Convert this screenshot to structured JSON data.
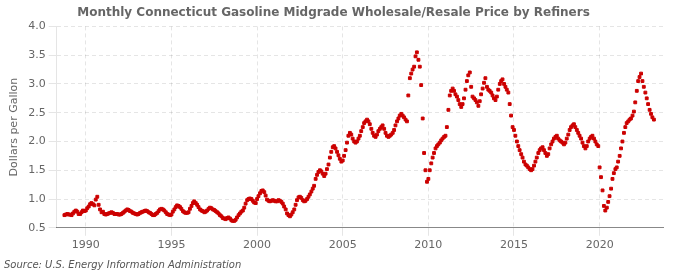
{
  "chart_data": {
    "type": "scatter",
    "title": "Monthly Connecticut Gasoline Midgrade Wholesale/Resale Price by Refiners",
    "y_label": "Dollars per Gallon",
    "source": "Source: U.S. Energy Information Administration",
    "color": "#cc0000",
    "marker": "square",
    "grid": true,
    "xlim": [
      1988.3,
      2023.7
    ],
    "xticks": [
      1990,
      1995,
      2000,
      2005,
      2010,
      2015,
      2020
    ],
    "ylim": [
      0.5,
      4.0
    ],
    "yticks": [
      0.5,
      {
        "value": 1,
        "label": "1.0"
      },
      1.5,
      {
        "value": 2,
        "label": "2.0"
      },
      2.5,
      {
        "value": 3,
        "label": "3.0"
      },
      3.5,
      {
        "value": 4,
        "label": "4.0"
      }
    ],
    "x": [
      1988.75,
      1988.83,
      1988.92,
      1989.0,
      1989.08,
      1989.17,
      1989.25,
      1989.33,
      1989.42,
      1989.5,
      1989.58,
      1989.67,
      1989.75,
      1989.83,
      1989.92,
      1990.0,
      1990.08,
      1990.17,
      1990.25,
      1990.33,
      1990.42,
      1990.5,
      1990.58,
      1990.67,
      1990.75,
      1990.83,
      1990.92,
      1991.0,
      1991.08,
      1991.17,
      1991.25,
      1991.33,
      1991.42,
      1991.5,
      1991.58,
      1991.67,
      1991.75,
      1991.83,
      1991.92,
      1992.0,
      1992.08,
      1992.17,
      1992.25,
      1992.33,
      1992.42,
      1992.5,
      1992.58,
      1992.67,
      1992.75,
      1992.83,
      1992.92,
      1993.0,
      1993.08,
      1993.17,
      1993.25,
      1993.33,
      1993.42,
      1993.5,
      1993.58,
      1993.67,
      1993.75,
      1993.83,
      1993.92,
      1994.0,
      1994.08,
      1994.17,
      1994.25,
      1994.33,
      1994.42,
      1994.5,
      1994.58,
      1994.67,
      1994.75,
      1994.83,
      1994.92,
      1995.0,
      1995.08,
      1995.17,
      1995.25,
      1995.33,
      1995.42,
      1995.5,
      1995.58,
      1995.67,
      1995.75,
      1995.83,
      1995.92,
      1996.0,
      1996.08,
      1996.17,
      1996.25,
      1996.33,
      1996.42,
      1996.5,
      1996.58,
      1996.67,
      1996.75,
      1996.83,
      1996.92,
      1997.0,
      1997.08,
      1997.17,
      1997.25,
      1997.33,
      1997.42,
      1997.5,
      1997.58,
      1997.67,
      1997.75,
      1997.83,
      1997.92,
      1998.0,
      1998.08,
      1998.17,
      1998.25,
      1998.33,
      1998.42,
      1998.5,
      1998.58,
      1998.67,
      1998.75,
      1998.83,
      1998.92,
      1999.0,
      1999.08,
      1999.17,
      1999.25,
      1999.33,
      1999.42,
      1999.5,
      1999.58,
      1999.67,
      1999.75,
      1999.83,
      1999.92,
      2000.0,
      2000.08,
      2000.17,
      2000.25,
      2000.33,
      2000.42,
      2000.5,
      2000.58,
      2000.67,
      2000.75,
      2000.83,
      2000.92,
      2001.0,
      2001.08,
      2001.17,
      2001.25,
      2001.33,
      2001.42,
      2001.5,
      2001.58,
      2001.67,
      2001.75,
      2001.83,
      2001.92,
      2002.0,
      2002.08,
      2002.17,
      2002.25,
      2002.33,
      2002.42,
      2002.5,
      2002.58,
      2002.67,
      2002.75,
      2002.83,
      2002.92,
      2003.0,
      2003.08,
      2003.17,
      2003.25,
      2003.33,
      2003.42,
      2003.5,
      2003.58,
      2003.67,
      2003.75,
      2003.83,
      2003.92,
      2004.0,
      2004.08,
      2004.17,
      2004.25,
      2004.33,
      2004.42,
      2004.5,
      2004.58,
      2004.67,
      2004.75,
      2004.83,
      2004.92,
      2005.0,
      2005.08,
      2005.17,
      2005.25,
      2005.33,
      2005.42,
      2005.5,
      2005.58,
      2005.67,
      2005.75,
      2005.83,
      2005.92,
      2006.0,
      2006.08,
      2006.17,
      2006.25,
      2006.33,
      2006.42,
      2006.5,
      2006.58,
      2006.67,
      2006.75,
      2006.83,
      2006.92,
      2007.0,
      2007.08,
      2007.17,
      2007.25,
      2007.33,
      2007.42,
      2007.5,
      2007.58,
      2007.67,
      2007.75,
      2007.83,
      2007.92,
      2008.0,
      2008.08,
      2008.17,
      2008.25,
      2008.33,
      2008.42,
      2008.5,
      2008.58,
      2008.67,
      2008.75,
      2008.83,
      2008.92,
      2009.0,
      2009.08,
      2009.17,
      2009.25,
      2009.33,
      2009.42,
      2009.5,
      2009.58,
      2009.67,
      2009.75,
      2009.83,
      2009.92,
      2010.0,
      2010.08,
      2010.17,
      2010.25,
      2010.33,
      2010.42,
      2010.5,
      2010.58,
      2010.67,
      2010.75,
      2010.83,
      2010.92,
      2011.0,
      2011.08,
      2011.17,
      2011.25,
      2011.33,
      2011.42,
      2011.5,
      2011.58,
      2011.67,
      2011.75,
      2011.83,
      2011.92,
      2012.0,
      2012.08,
      2012.17,
      2012.25,
      2012.33,
      2012.42,
      2012.5,
      2012.58,
      2012.67,
      2012.75,
      2012.83,
      2012.92,
      2013.0,
      2013.08,
      2013.17,
      2013.25,
      2013.33,
      2013.42,
      2013.5,
      2013.58,
      2013.67,
      2013.75,
      2013.83,
      2013.92,
      2014.0,
      2014.08,
      2014.17,
      2014.25,
      2014.33,
      2014.42,
      2014.5,
      2014.58,
      2014.67,
      2014.75,
      2014.83,
      2014.92,
      2015.0,
      2015.08,
      2015.17,
      2015.25,
      2015.33,
      2015.42,
      2015.5,
      2015.58,
      2015.67,
      2015.75,
      2015.83,
      2015.92,
      2016.0,
      2016.08,
      2016.17,
      2016.25,
      2016.33,
      2016.42,
      2016.5,
      2016.58,
      2016.67,
      2016.75,
      2016.83,
      2016.92,
      2017.0,
      2017.08,
      2017.17,
      2017.25,
      2017.33,
      2017.42,
      2017.5,
      2017.58,
      2017.67,
      2017.75,
      2017.83,
      2017.92,
      2018.0,
      2018.08,
      2018.17,
      2018.25,
      2018.33,
      2018.42,
      2018.5,
      2018.58,
      2018.67,
      2018.75,
      2018.83,
      2018.92,
      2019.0,
      2019.08,
      2019.17,
      2019.25,
      2019.33,
      2019.42,
      2019.5,
      2019.58,
      2019.67,
      2019.75,
      2019.83,
      2019.92,
      2020.0,
      2020.08,
      2020.17,
      2020.25,
      2020.33,
      2020.42,
      2020.5,
      2020.58,
      2020.67,
      2020.75,
      2020.83,
      2020.92,
      2021.0,
      2021.08,
      2021.17,
      2021.25,
      2021.33,
      2021.42,
      2021.5,
      2021.58,
      2021.67,
      2021.75,
      2021.83,
      2021.92,
      2022.0,
      2022.08,
      2022.17,
      2022.25,
      2022.33,
      2022.42,
      2022.5,
      2022.58,
      2022.67,
      2022.75,
      2022.83,
      2022.92,
      2023.0,
      2023.08,
      2023.17
    ],
    "values": [
      0.72,
      0.73,
      0.74,
      0.73,
      0.73,
      0.72,
      0.75,
      0.78,
      0.8,
      0.78,
      0.74,
      0.74,
      0.77,
      0.8,
      0.79,
      0.8,
      0.84,
      0.87,
      0.91,
      0.93,
      0.91,
      0.89,
      0.99,
      1.04,
      0.9,
      0.82,
      0.77,
      0.78,
      0.74,
      0.73,
      0.74,
      0.75,
      0.76,
      0.77,
      0.76,
      0.74,
      0.74,
      0.74,
      0.73,
      0.73,
      0.74,
      0.76,
      0.78,
      0.8,
      0.82,
      0.81,
      0.79,
      0.78,
      0.76,
      0.75,
      0.74,
      0.73,
      0.74,
      0.76,
      0.77,
      0.78,
      0.79,
      0.8,
      0.79,
      0.77,
      0.76,
      0.74,
      0.72,
      0.72,
      0.74,
      0.76,
      0.79,
      0.82,
      0.83,
      0.82,
      0.8,
      0.77,
      0.74,
      0.73,
      0.72,
      0.73,
      0.78,
      0.82,
      0.86,
      0.89,
      0.88,
      0.86,
      0.83,
      0.79,
      0.77,
      0.76,
      0.76,
      0.77,
      0.83,
      0.88,
      0.93,
      0.96,
      0.93,
      0.9,
      0.86,
      0.82,
      0.8,
      0.79,
      0.77,
      0.78,
      0.8,
      0.83,
      0.85,
      0.84,
      0.82,
      0.81,
      0.79,
      0.77,
      0.75,
      0.72,
      0.7,
      0.67,
      0.66,
      0.65,
      0.67,
      0.68,
      0.66,
      0.63,
      0.62,
      0.62,
      0.64,
      0.68,
      0.72,
      0.75,
      0.78,
      0.8,
      0.85,
      0.92,
      0.98,
      1.0,
      1.01,
      1.0,
      0.97,
      0.94,
      0.93,
      1.0,
      1.05,
      1.1,
      1.14,
      1.15,
      1.12,
      1.06,
      0.99,
      0.97,
      0.96,
      0.97,
      0.98,
      0.97,
      0.96,
      0.96,
      0.98,
      0.97,
      0.95,
      0.92,
      0.87,
      0.82,
      0.75,
      0.72,
      0.7,
      0.73,
      0.77,
      0.82,
      0.9,
      0.98,
      1.03,
      1.04,
      1.02,
      0.98,
      0.96,
      0.97,
      1.0,
      1.04,
      1.08,
      1.13,
      1.18,
      1.23,
      1.35,
      1.42,
      1.47,
      1.5,
      1.48,
      1.44,
      1.4,
      1.44,
      1.52,
      1.6,
      1.72,
      1.82,
      1.9,
      1.92,
      1.88,
      1.82,
      1.76,
      1.7,
      1.65,
      1.67,
      1.75,
      1.85,
      1.98,
      2.1,
      2.15,
      2.12,
      2.05,
      2.0,
      1.98,
      2.0,
      2.05,
      2.1,
      2.18,
      2.25,
      2.32,
      2.35,
      2.38,
      2.35,
      2.3,
      2.22,
      2.15,
      2.1,
      2.08,
      2.12,
      2.18,
      2.22,
      2.25,
      2.28,
      2.22,
      2.15,
      2.1,
      2.08,
      2.1,
      2.12,
      2.15,
      2.2,
      2.28,
      2.35,
      2.4,
      2.45,
      2.48,
      2.45,
      2.42,
      2.38,
      2.35,
      2.8,
      3.1,
      3.18,
      3.25,
      3.3,
      3.48,
      3.55,
      3.42,
      3.3,
      2.98,
      2.4,
      1.8,
      1.5,
      1.3,
      1.35,
      1.5,
      1.62,
      1.72,
      1.8,
      1.88,
      1.92,
      1.95,
      1.98,
      2.02,
      2.05,
      2.08,
      2.1,
      2.25,
      2.55,
      2.8,
      2.88,
      2.92,
      2.88,
      2.82,
      2.78,
      2.72,
      2.65,
      2.6,
      2.65,
      2.75,
      2.9,
      3.05,
      3.15,
      3.2,
      2.95,
      2.78,
      2.75,
      2.72,
      2.68,
      2.62,
      2.7,
      2.82,
      2.92,
      3.02,
      3.1,
      2.95,
      2.9,
      2.88,
      2.85,
      2.8,
      2.75,
      2.72,
      2.78,
      2.9,
      3.0,
      3.05,
      3.08,
      3.0,
      2.95,
      2.9,
      2.85,
      2.65,
      2.45,
      2.25,
      2.2,
      2.1,
      2.0,
      1.92,
      1.85,
      1.78,
      1.72,
      1.65,
      1.6,
      1.58,
      1.55,
      1.52,
      1.5,
      1.52,
      1.58,
      1.65,
      1.72,
      1.8,
      1.85,
      1.88,
      1.9,
      1.85,
      1.8,
      1.75,
      1.78,
      1.88,
      1.95,
      2.0,
      2.05,
      2.08,
      2.1,
      2.05,
      2.02,
      2.0,
      1.98,
      1.95,
      1.98,
      2.05,
      2.12,
      2.2,
      2.25,
      2.28,
      2.3,
      2.25,
      2.2,
      2.15,
      2.1,
      2.05,
      1.98,
      1.92,
      1.88,
      1.92,
      2.0,
      2.05,
      2.08,
      2.1,
      2.05,
      2.0,
      1.95,
      1.92,
      1.55,
      1.38,
      1.15,
      0.88,
      0.8,
      0.85,
      0.95,
      1.05,
      1.18,
      1.35,
      1.45,
      1.52,
      1.55,
      1.65,
      1.75,
      1.88,
      2.0,
      2.15,
      2.25,
      2.32,
      2.35,
      2.38,
      2.4,
      2.45,
      2.52,
      2.68,
      2.88,
      3.05,
      3.12,
      3.18,
      3.05,
      2.95,
      2.85,
      2.75,
      2.65,
      2.55,
      2.48,
      2.42,
      2.38
    ]
  }
}
